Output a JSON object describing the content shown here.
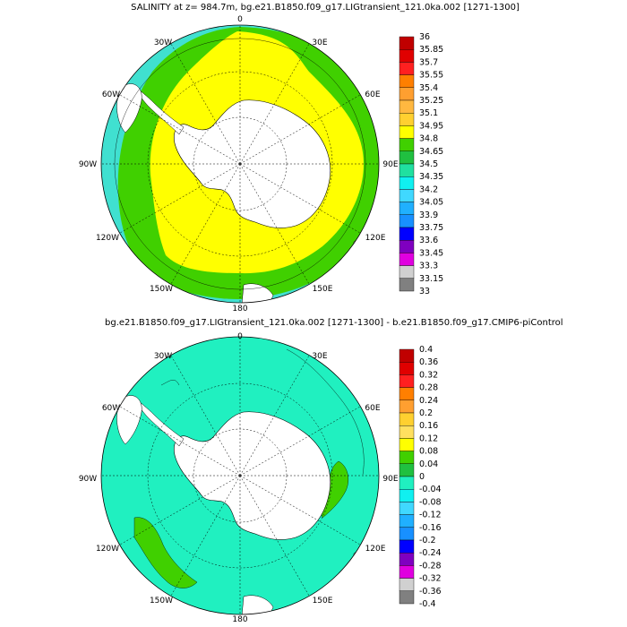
{
  "panels": [
    {
      "title": "SALINITY at z= 984.7m, bg.e21.B1850.f09_g17.LIGtransient_121.0ka.002 [1271-1300]",
      "lon_labels": [
        "0",
        "30E",
        "60E",
        "90E",
        "120E",
        "150E",
        "180",
        "150W",
        "120W",
        "90W",
        "60W",
        "30W"
      ],
      "colorbar": {
        "labels": [
          "36",
          "35.85",
          "35.7",
          "35.55",
          "35.4",
          "35.25",
          "35.1",
          "34.95",
          "34.8",
          "34.65",
          "34.5",
          "34.35",
          "34.2",
          "34.05",
          "33.9",
          "33.75",
          "33.6",
          "33.45",
          "33.3",
          "33.15",
          "33"
        ],
        "colors": [
          "#c00000",
          "#e00000",
          "#ff2020",
          "#ff7f00",
          "#ff9f30",
          "#ffb840",
          "#ffd030",
          "#ffff00",
          "#40d000",
          "#20c040",
          "#20e0a0",
          "#10f0f0",
          "#40d8ff",
          "#20b0ff",
          "#1890ff",
          "#0000ff",
          "#7f00c0",
          "#e000e0",
          "#d0d0d0",
          "#808080"
        ]
      },
      "fields": {
        "ocean_base": "#40e0d0",
        "band_outer": "#40d000",
        "band_inner": "#ffff00"
      }
    },
    {
      "title": "bg.e21.B1850.f09_g17.LIGtransient_121.0ka.002 [1271-1300] - b.e21.B1850.f09_g17.CMIP6-piControl",
      "lon_labels": [
        "0",
        "30E",
        "60E",
        "90E",
        "120E",
        "150E",
        "180",
        "150W",
        "120W",
        "90W",
        "60W",
        "30W"
      ],
      "colorbar": {
        "labels": [
          "0.4",
          "0.36",
          "0.32",
          "0.28",
          "0.24",
          "0.2",
          "0.16",
          "0.12",
          "0.08",
          "0.04",
          "0",
          "-0.04",
          "-0.08",
          "-0.12",
          "-0.16",
          "-0.2",
          "-0.24",
          "-0.28",
          "-0.32",
          "-0.36",
          "-0.4"
        ],
        "colors": [
          "#c00000",
          "#e00000",
          "#ff2020",
          "#ff7f00",
          "#ff9f30",
          "#ffd030",
          "#ffe060",
          "#ffff00",
          "#40d000",
          "#20c040",
          "#20f0c0",
          "#10f0f0",
          "#40d8ff",
          "#20b0ff",
          "#1890ff",
          "#0000ff",
          "#7f00c0",
          "#e000e0",
          "#d0d0d0",
          "#808080"
        ]
      },
      "fields": {
        "ocean_base": "#20f0c0",
        "patch": "#40d000"
      }
    }
  ],
  "land_color": "#ffffff"
}
